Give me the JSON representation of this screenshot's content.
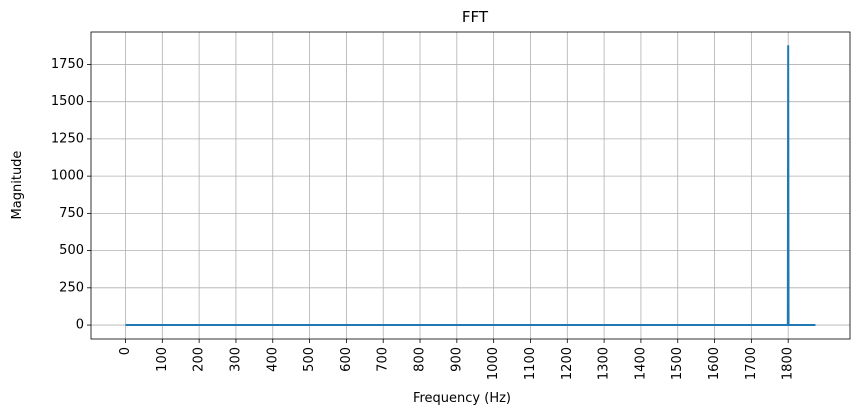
{
  "chart_data": {
    "type": "line",
    "title": "FFT",
    "xlabel": "Frequency (Hz)",
    "ylabel": "Magnitude",
    "xlim": [
      -93.7,
      1967.9
    ],
    "ylim": [
      -93.7,
      1967.9
    ],
    "xticks": [
      0,
      100,
      200,
      300,
      400,
      500,
      600,
      700,
      800,
      900,
      1000,
      1100,
      1200,
      1300,
      1400,
      1500,
      1600,
      1700,
      1800
    ],
    "xtick_labels": [
      "0",
      "100",
      "200",
      "300",
      "400",
      "500",
      "600",
      "700",
      "800",
      "900",
      "1000",
      "1100",
      "1200",
      "1300",
      "1400",
      "1500",
      "1600",
      "1700",
      "1800"
    ],
    "yticks": [
      0,
      250,
      500,
      750,
      1000,
      1250,
      1500,
      1750
    ],
    "ytick_labels": [
      "0",
      "250",
      "500",
      "750",
      "1000",
      "1250",
      "1500",
      "1750"
    ],
    "grid": true,
    "legend": "none",
    "series": [
      {
        "color": "#1f77b4",
        "x": [
          0,
          1799,
          1800,
          1801,
          1874
        ],
        "y": [
          0,
          0,
          1874,
          0,
          0
        ]
      }
    ]
  }
}
